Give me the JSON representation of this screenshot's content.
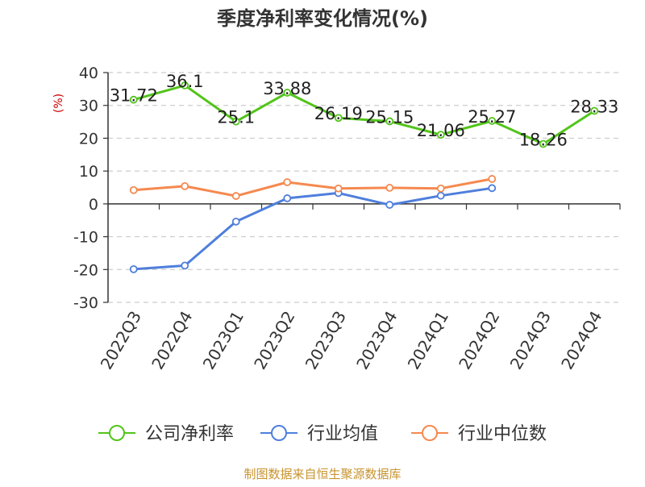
{
  "chart_data": {
    "type": "line",
    "title": "季度净利率变化情况(%)",
    "ylabel": "(%)",
    "xlabel": "",
    "ylim": [
      -30,
      40
    ],
    "yticks": [
      40,
      30,
      20,
      10,
      0,
      -10,
      -20,
      -30
    ],
    "categories": [
      "2022Q3",
      "2022Q4",
      "2023Q1",
      "2023Q2",
      "2023Q3",
      "2023Q4",
      "2024Q1",
      "2024Q2",
      "2024Q3",
      "2024Q4"
    ],
    "grid": true,
    "legend_position": "bottom",
    "series": [
      {
        "name": "公司净利率",
        "color": "#52c41a",
        "show_labels": true,
        "values": [
          31.72,
          36.1,
          25.1,
          33.88,
          26.19,
          25.15,
          21.06,
          25.27,
          18.26,
          28.33
        ]
      },
      {
        "name": "行业均值",
        "color": "#4f7fdc",
        "show_labels": false,
        "values": [
          -19.9,
          -18.8,
          -5.4,
          1.7,
          3.3,
          -0.3,
          2.5,
          4.8,
          null,
          null
        ]
      },
      {
        "name": "行业中位数",
        "color": "#f5894f",
        "show_labels": false,
        "values": [
          4.2,
          5.4,
          2.4,
          6.6,
          4.7,
          4.9,
          4.7,
          7.6,
          null,
          null
        ]
      }
    ],
    "source": "制图数据来自恒生聚源数据库"
  }
}
